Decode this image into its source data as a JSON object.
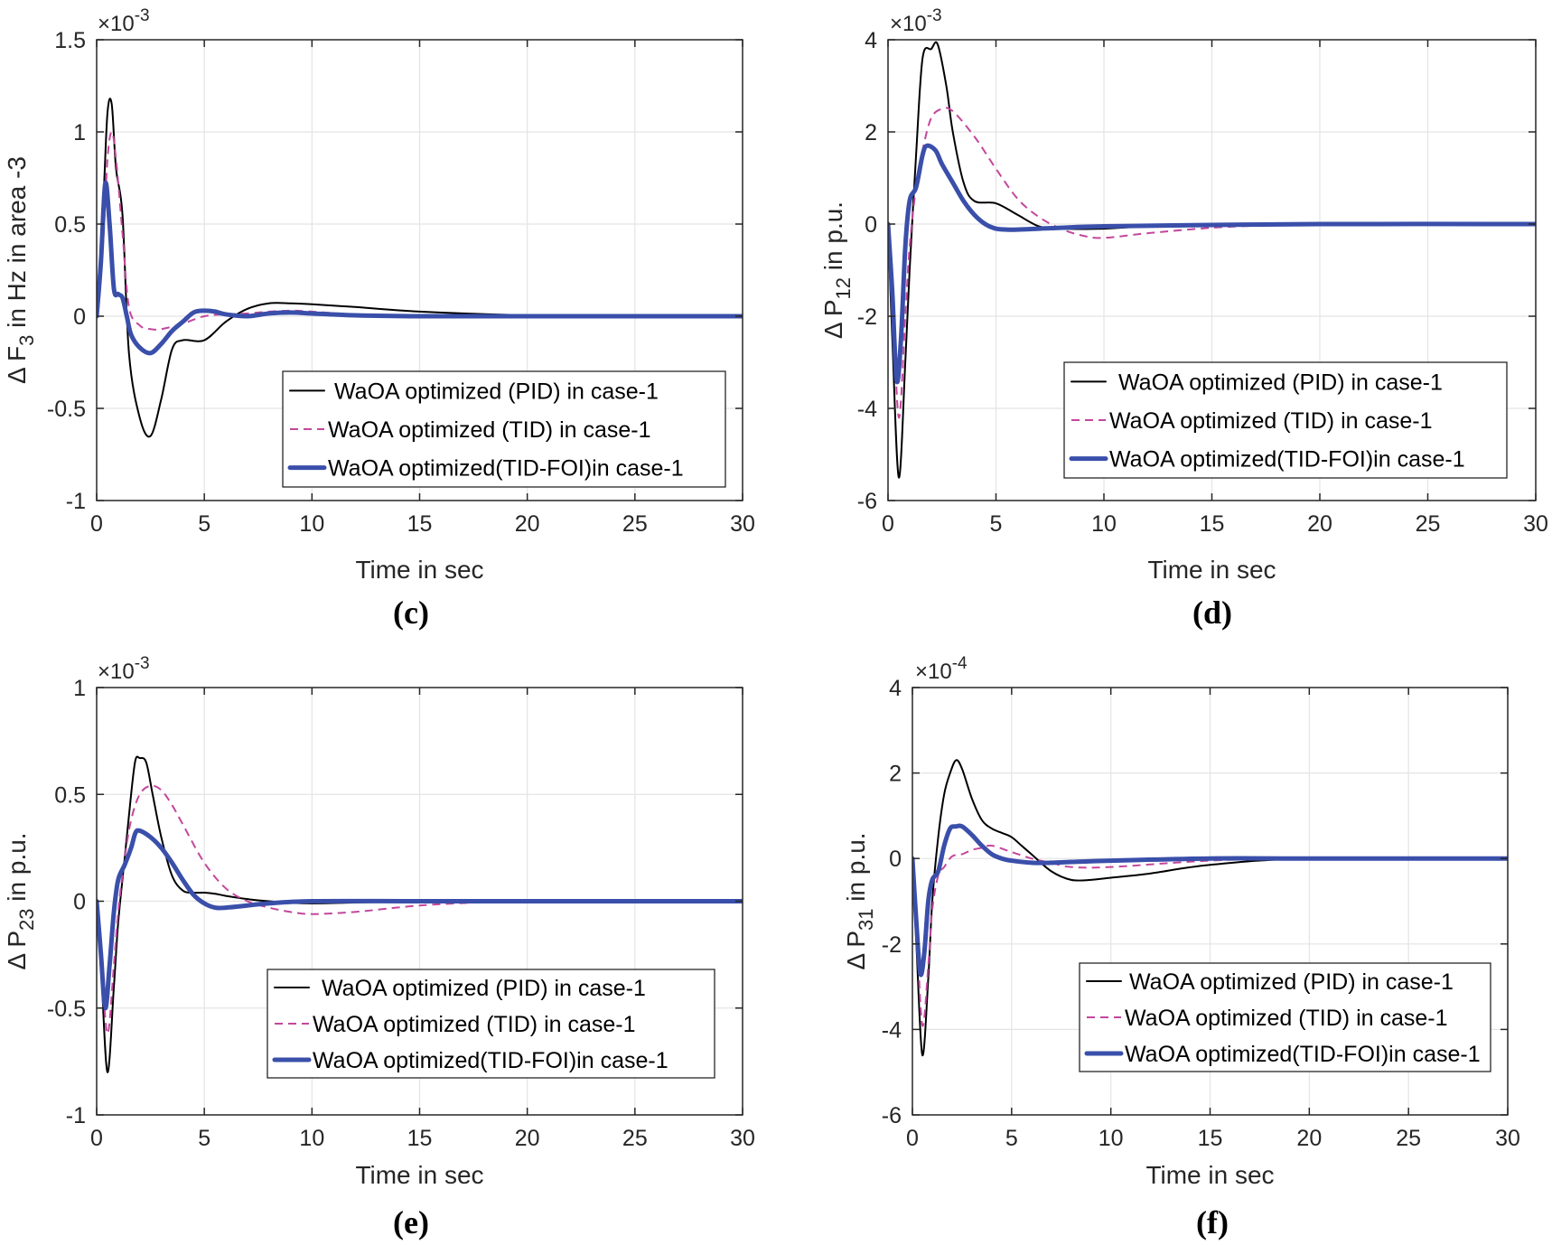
{
  "figure": {
    "legend_entries": [
      {
        "label": "WaOA optimized (PID) in case-1",
        "color": "#000000",
        "style": "solid",
        "width": 2
      },
      {
        "label": "WaOA optimized (TID) in case-1",
        "color": "#c3479c",
        "style": "dashed",
        "width": 2
      },
      {
        "label": "WaOA optimized(TID-FOI)in case-1",
        "color": "#3a4faa",
        "style": "solid",
        "width": 5
      }
    ],
    "grid": true
  },
  "chart_data": [
    {
      "id": "c",
      "caption": "(c)",
      "type": "line",
      "xlabel": "Time in sec",
      "ylabel": "Δ F3 in Hz in area -3",
      "ylabel_main": "Δ F",
      "ylabel_sub": "3",
      "ylabel_rest": "in Hz in area -3",
      "exponent_label": "×10⁻³",
      "exp_base": "×10",
      "exp_power": "-3",
      "xlim": [
        0,
        30
      ],
      "ylim": [
        -1,
        1.5
      ],
      "xticks": [
        0,
        5,
        10,
        15,
        20,
        25,
        30
      ],
      "yticks": [
        -1,
        -0.5,
        0,
        0.5,
        1,
        1.5
      ],
      "ytick_labels": [
        "-1",
        "-0.5",
        "0",
        "0.5",
        "1",
        "1.5"
      ],
      "legend_position": "lower-right",
      "series": [
        {
          "name": "WaOA optimized (PID) in case-1",
          "x": [
            0,
            0.3,
            0.5,
            0.7,
            0.9,
            1.2,
            1.5,
            2.0,
            2.5,
            3.0,
            3.5,
            4.0,
            5.0,
            6.0,
            7.0,
            8.0,
            9.0,
            10.0,
            12.0,
            15.0,
            20.0,
            25.0,
            30.0
          ],
          "y": [
            0,
            0.6,
            1.1,
            1.15,
            0.8,
            0.55,
            -0.2,
            -0.55,
            -0.65,
            -0.45,
            -0.18,
            -0.13,
            -0.13,
            -0.03,
            0.04,
            0.07,
            0.07,
            0.065,
            0.05,
            0.025,
            0.005,
            0,
            0
          ]
        },
        {
          "name": "WaOA optimized (TID) in case-1",
          "x": [
            0,
            0.3,
            0.5,
            0.7,
            0.9,
            1.2,
            1.5,
            2.0,
            2.5,
            3.0,
            4.0,
            5.0,
            6.0,
            7.0,
            8.0,
            9.0,
            10.0,
            12.0,
            15.0,
            20.0,
            30.0
          ],
          "y": [
            0,
            0.4,
            0.85,
            1.0,
            0.85,
            0.45,
            0.05,
            -0.05,
            -0.07,
            -0.07,
            -0.04,
            0.0,
            0.01,
            0.015,
            0.025,
            0.03,
            0.025,
            0.01,
            0.005,
            0,
            0
          ]
        },
        {
          "name": "WaOA optimized(TID-FOI)in case-1",
          "x": [
            0,
            0.2,
            0.4,
            0.6,
            0.8,
            1.0,
            1.2,
            1.4,
            1.6,
            2.0,
            2.5,
            3.0,
            3.5,
            4.0,
            4.5,
            5.0,
            5.5,
            6.0,
            7.0,
            8.0,
            9.0,
            10.0,
            12.0,
            15.0,
            20.0,
            30.0
          ],
          "y": [
            0,
            0.3,
            0.72,
            0.5,
            0.15,
            0.12,
            0.1,
            0.0,
            -0.1,
            -0.17,
            -0.2,
            -0.15,
            -0.08,
            -0.03,
            0.02,
            0.03,
            0.025,
            0.01,
            0.0,
            0.015,
            0.02,
            0.015,
            0.005,
            0,
            0,
            0
          ]
        }
      ]
    },
    {
      "id": "d",
      "caption": "(d)",
      "type": "line",
      "xlabel": "Time in sec",
      "ylabel": "Δ P12 in p.u.",
      "ylabel_main": "Δ P",
      "ylabel_sub": "12",
      "ylabel_rest": "in p.u.",
      "exponent_label": "×10⁻³",
      "exp_base": "×10",
      "exp_power": "-3",
      "xlim": [
        0,
        30
      ],
      "ylim": [
        -6,
        4
      ],
      "xticks": [
        0,
        5,
        10,
        15,
        20,
        25,
        30
      ],
      "yticks": [
        -6,
        -4,
        -2,
        0,
        2,
        4
      ],
      "ytick_labels": [
        "-6",
        "-4",
        "-2",
        "0",
        "2",
        "4"
      ],
      "legend_position": "lower-right",
      "series": [
        {
          "name": "WaOA optimized (PID) in case-1",
          "x": [
            0,
            0.2,
            0.5,
            0.8,
            1.0,
            1.3,
            1.6,
            2.0,
            2.3,
            2.7,
            3.0,
            3.5,
            4.0,
            5.0,
            6.0,
            7.0,
            8.0,
            10.0,
            12.0,
            15.0,
            20.0,
            30.0
          ],
          "y": [
            0,
            -2.5,
            -5.5,
            -3.0,
            -1.0,
            1.5,
            3.6,
            3.8,
            3.9,
            3.0,
            2.0,
            0.9,
            0.5,
            0.45,
            0.2,
            -0.05,
            -0.1,
            -0.1,
            -0.05,
            -0.02,
            0,
            0
          ]
        },
        {
          "name": "WaOA optimized (TID) in case-1",
          "x": [
            0,
            0.2,
            0.5,
            0.8,
            1.0,
            1.3,
            1.6,
            2.0,
            2.5,
            3.0,
            4.0,
            5.0,
            6.0,
            7.0,
            8.0,
            9.0,
            10.0,
            12.0,
            15.0,
            18.0,
            20.0,
            30.0
          ],
          "y": [
            0,
            -1.5,
            -4.2,
            -2.0,
            -0.5,
            0.8,
            1.6,
            2.3,
            2.5,
            2.45,
            1.9,
            1.2,
            0.55,
            0.15,
            -0.1,
            -0.25,
            -0.3,
            -0.2,
            -0.08,
            -0.02,
            0,
            0
          ]
        },
        {
          "name": "WaOA optimized(TID-FOI)in case-1",
          "x": [
            0,
            0.2,
            0.4,
            0.6,
            0.8,
            1.0,
            1.3,
            1.6,
            1.8,
            2.2,
            2.5,
            3.0,
            3.5,
            4.0,
            4.5,
            5.0,
            5.5,
            6.0,
            7.0,
            8.0,
            10.0,
            15.0,
            20.0,
            30.0
          ],
          "y": [
            0,
            -1.5,
            -3.4,
            -2.5,
            -0.5,
            0.5,
            0.8,
            1.5,
            1.7,
            1.6,
            1.3,
            0.9,
            0.5,
            0.2,
            0.0,
            -0.1,
            -0.12,
            -0.12,
            -0.1,
            -0.08,
            -0.05,
            -0.02,
            0,
            0
          ]
        }
      ]
    },
    {
      "id": "e",
      "caption": "(e)",
      "type": "line",
      "xlabel": "Time in sec",
      "ylabel": "Δ P23 in p.u.",
      "ylabel_main": "Δ P",
      "ylabel_sub": "23",
      "ylabel_rest": "in p.u.",
      "exponent_label": "×10⁻³",
      "exp_base": "×10",
      "exp_power": "-3",
      "xlim": [
        0,
        30
      ],
      "ylim": [
        -1,
        1
      ],
      "xticks": [
        0,
        5,
        10,
        15,
        20,
        25,
        30
      ],
      "yticks": [
        -1,
        -0.5,
        0,
        0.5,
        1
      ],
      "ytick_labels": [
        "-1",
        "-0.5",
        "0",
        "0.5",
        "1"
      ],
      "legend_position": "lower-right",
      "series": [
        {
          "name": "WaOA optimized (PID) in case-1",
          "x": [
            0,
            0.2,
            0.5,
            0.8,
            1.0,
            1.3,
            1.6,
            1.8,
            2.0,
            2.3,
            2.6,
            3.0,
            3.5,
            4.0,
            4.5,
            5.0,
            5.5,
            6.0,
            7.0,
            8.0,
            10.0,
            15.0,
            20.0,
            30.0
          ],
          "y": [
            0,
            -0.3,
            -0.8,
            -0.4,
            -0.1,
            0.2,
            0.5,
            0.66,
            0.67,
            0.65,
            0.5,
            0.3,
            0.12,
            0.05,
            0.04,
            0.04,
            0.035,
            0.025,
            0.01,
            0.0,
            -0.01,
            0,
            0,
            0
          ]
        },
        {
          "name": "WaOA optimized (TID) in case-1",
          "x": [
            0,
            0.2,
            0.5,
            0.8,
            1.0,
            1.3,
            1.6,
            2.0,
            2.5,
            3.0,
            3.5,
            4.0,
            5.0,
            6.0,
            7.0,
            8.0,
            9.0,
            10.0,
            12.0,
            15.0,
            18.0,
            20.0,
            30.0
          ],
          "y": [
            0,
            -0.25,
            -0.62,
            -0.3,
            -0.05,
            0.2,
            0.38,
            0.5,
            0.54,
            0.52,
            0.45,
            0.36,
            0.18,
            0.06,
            0.0,
            -0.03,
            -0.05,
            -0.06,
            -0.05,
            -0.02,
            -0.005,
            0,
            0
          ]
        },
        {
          "name": "WaOA optimized(TID-FOI)in case-1",
          "x": [
            0,
            0.2,
            0.4,
            0.6,
            0.8,
            1.0,
            1.3,
            1.6,
            1.8,
            2.0,
            2.5,
            3.0,
            3.5,
            4.0,
            4.5,
            5.0,
            5.5,
            6.0,
            7.0,
            8.0,
            10.0,
            15.0,
            20.0,
            30.0
          ],
          "y": [
            0,
            -0.25,
            -0.5,
            -0.3,
            -0.05,
            0.1,
            0.17,
            0.25,
            0.32,
            0.33,
            0.3,
            0.25,
            0.18,
            0.1,
            0.03,
            -0.01,
            -0.03,
            -0.03,
            -0.02,
            -0.01,
            0,
            0,
            0,
            0
          ]
        }
      ]
    },
    {
      "id": "f",
      "caption": "(f)",
      "type": "line",
      "xlabel": "Time in sec",
      "ylabel": "Δ P31 in p.u.",
      "ylabel_main": "Δ P",
      "ylabel_sub": "31",
      "ylabel_rest": "in p.u.",
      "exponent_label": "×10⁻⁴",
      "exp_base": "×10",
      "exp_power": "-4",
      "xlim": [
        0,
        30
      ],
      "ylim": [
        -6,
        4
      ],
      "xticks": [
        0,
        5,
        10,
        15,
        20,
        25,
        30
      ],
      "yticks": [
        -6,
        -4,
        -2,
        0,
        2,
        4
      ],
      "ytick_labels": [
        "-6",
        "-4",
        "-2",
        "0",
        "2",
        "4"
      ],
      "legend_position": "lower-right",
      "series": [
        {
          "name": "WaOA optimized (PID) in case-1",
          "x": [
            0,
            0.2,
            0.5,
            0.8,
            1.0,
            1.3,
            1.6,
            1.9,
            2.2,
            2.5,
            3.0,
            3.5,
            4.0,
            4.5,
            5.0,
            5.5,
            6.0,
            7.0,
            8.0,
            9.0,
            10.0,
            12.0,
            15.0,
            20.0,
            30.0
          ],
          "y": [
            0,
            -2.0,
            -4.6,
            -2.8,
            -1.0,
            0.5,
            1.5,
            2.0,
            2.3,
            2.1,
            1.4,
            0.9,
            0.7,
            0.6,
            0.5,
            0.3,
            0.1,
            -0.3,
            -0.5,
            -0.5,
            -0.45,
            -0.35,
            -0.15,
            0,
            0
          ]
        },
        {
          "name": "WaOA optimized (TID) in case-1",
          "x": [
            0,
            0.2,
            0.5,
            0.8,
            1.0,
            1.3,
            1.6,
            2.0,
            2.5,
            3.0,
            3.5,
            4.0,
            5.0,
            6.0,
            7.0,
            8.0,
            10.0,
            15.0,
            20.0,
            30.0
          ],
          "y": [
            0,
            -1.5,
            -3.9,
            -2.5,
            -1.2,
            -0.4,
            -0.2,
            0.05,
            0.1,
            0.2,
            0.25,
            0.3,
            0.15,
            0.0,
            -0.1,
            -0.2,
            -0.2,
            -0.05,
            0,
            0
          ]
        },
        {
          "name": "WaOA optimized(TID-FOI)in case-1",
          "x": [
            0,
            0.2,
            0.4,
            0.6,
            0.8,
            1.0,
            1.3,
            1.6,
            1.9,
            2.2,
            2.5,
            3.0,
            3.5,
            4.0,
            4.5,
            5.0,
            6.0,
            7.0,
            8.0,
            10.0,
            15.0,
            20.0,
            30.0
          ],
          "y": [
            0,
            -1.5,
            -2.7,
            -2.2,
            -1.0,
            -0.5,
            -0.3,
            0.3,
            0.7,
            0.75,
            0.75,
            0.55,
            0.3,
            0.1,
            0.0,
            -0.05,
            -0.1,
            -0.1,
            -0.08,
            -0.05,
            0,
            0,
            0
          ]
        }
      ]
    }
  ]
}
